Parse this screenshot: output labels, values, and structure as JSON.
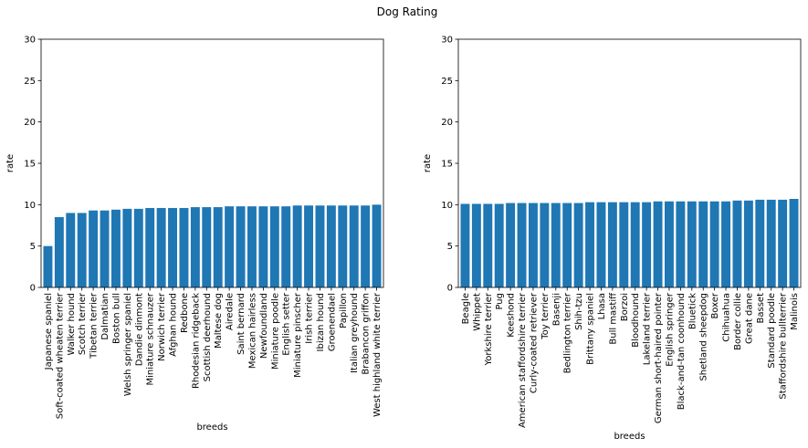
{
  "figure": {
    "title": "Dog Rating"
  },
  "colors": {
    "bar": "#1f77b4",
    "axis": "#000000",
    "background": "#ffffff"
  },
  "chart_data": [
    {
      "type": "bar",
      "xlabel": "breeds",
      "ylabel": "rate",
      "ylim": [
        0,
        30
      ],
      "yticks": [
        0,
        5,
        10,
        15,
        20,
        25,
        30
      ],
      "grid": false,
      "categories": [
        "Japanese spaniel",
        "Soft-coated wheaten terrier",
        "Walker hound",
        "Scotch terrier",
        "Tibetan terrier",
        "Dalmatian",
        "Boston bull",
        "Welsh springer spaniel",
        "Dandie dinmont",
        "Miniature schnauzer",
        "Norwich terrier",
        "Afghan hound",
        "Redbone",
        "Rhodesian ridgeback",
        "Scottish deerhound",
        "Maltese dog",
        "Airedale",
        "Saint bernard",
        "Mexican hairless",
        "Newfoundland",
        "Miniature poodle",
        "English setter",
        "Miniature pinscher",
        "Irish terrier",
        "Ibizan hound",
        "Groenendael",
        "Papillon",
        "Italian greyhound",
        "Brabancon griffon",
        "West highland white terrier"
      ],
      "values": [
        5.0,
        8.5,
        9.0,
        9.0,
        9.3,
        9.3,
        9.4,
        9.5,
        9.5,
        9.6,
        9.6,
        9.6,
        9.6,
        9.7,
        9.7,
        9.7,
        9.8,
        9.8,
        9.8,
        9.8,
        9.8,
        9.8,
        9.9,
        9.9,
        9.9,
        9.9,
        9.9,
        9.9,
        9.9,
        10.0
      ]
    },
    {
      "type": "bar",
      "xlabel": "breeds",
      "ylabel": "rate",
      "ylim": [
        0,
        30
      ],
      "yticks": [
        0,
        5,
        10,
        15,
        20,
        25,
        30
      ],
      "grid": false,
      "categories": [
        "Beagle",
        "Whippet",
        "Yorkshire terrier",
        "Pug",
        "Keeshond",
        "American staffordshire terrier",
        "Curly-coated retriever",
        "Toy terrier",
        "Basenji",
        "Bedlington terrier",
        "Shih-tzu",
        "Brittany spaniel",
        "Lhasa",
        "Bull mastiff",
        "Borzoi",
        "Bloodhound",
        "Lakeland terrier",
        "German short-haired pointer",
        "English springer",
        "Black-and-tan coonhound",
        "Bluetick",
        "Shetland sheepdog",
        "Boxer",
        "Chihuahua",
        "Border collie",
        "Great dane",
        "Basset",
        "Standard poodle",
        "Staffordshire bullterrier",
        "Malinois"
      ],
      "values": [
        10.1,
        10.1,
        10.1,
        10.1,
        10.2,
        10.2,
        10.2,
        10.2,
        10.2,
        10.2,
        10.2,
        10.3,
        10.3,
        10.3,
        10.3,
        10.3,
        10.3,
        10.4,
        10.4,
        10.4,
        10.4,
        10.4,
        10.4,
        10.4,
        10.5,
        10.5,
        10.6,
        10.6,
        10.6,
        10.7
      ]
    }
  ]
}
